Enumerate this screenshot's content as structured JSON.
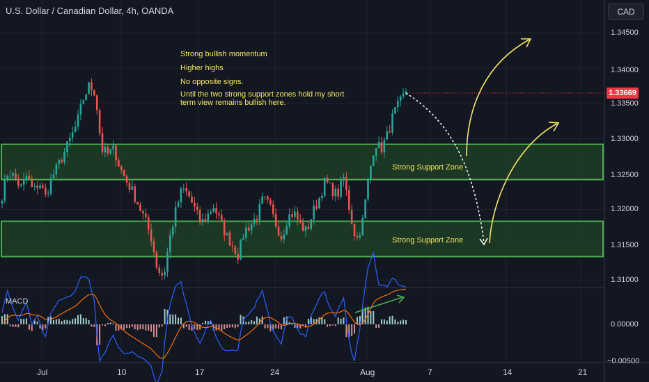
{
  "header": {
    "symbol_title": "U.S. Dollar / Canadian Dollar, 4h, OANDA"
  },
  "currency_button": "CAD",
  "last_price": "1.33669",
  "notes": [
    "Strong bullish momentum",
    "Higher highs",
    "No opposite signs.",
    "Until the two strong support zones hold my short\nterm view remains bullish here."
  ],
  "zones": [
    {
      "label": "Strong Support Zone",
      "low": 1.3242,
      "high": 1.3292
    },
    {
      "label": "Strong Support Zone",
      "low": 1.3133,
      "high": 1.3183
    }
  ],
  "macd": {
    "title": "MACD",
    "ticks": [
      "0.00000",
      "−0.00500"
    ]
  },
  "colors": {
    "background": "#131722",
    "bull": "#26a69a",
    "bear": "#ef5350",
    "zone_fill": "#1f3d23",
    "zone_border": "#4caf50",
    "annotation": "#f5e663",
    "price_tag": "#f23645"
  },
  "chart_data": {
    "type": "candlestick",
    "title": "U.S. Dollar / Canadian Dollar, 4h, OANDA",
    "y_axis": {
      "ticks": [
        "1.34500",
        "1.34000",
        "1.33500",
        "1.33000",
        "1.32500",
        "1.32000",
        "1.31500",
        "1.31000"
      ],
      "range": [
        1.309,
        1.3475
      ]
    },
    "x_axis": {
      "ticks": [
        "Jul",
        "10",
        "17",
        "24",
        "Aug",
        "7",
        "14",
        "21"
      ]
    },
    "close_path": [
      1.322,
      1.3255,
      1.3245,
      1.323,
      1.3248,
      1.3225,
      1.3238,
      1.3218,
      1.3245,
      1.3262,
      1.328,
      1.33,
      1.332,
      1.3355,
      1.3375,
      1.3365,
      1.3285,
      1.3278,
      1.3285,
      1.3258,
      1.324,
      1.3225,
      1.3205,
      1.3185,
      1.316,
      1.3115,
      1.3105,
      1.316,
      1.32,
      1.323,
      1.322,
      1.32,
      1.318,
      1.319,
      1.3205,
      1.3185,
      1.3165,
      1.315,
      1.3135,
      1.317,
      1.3178,
      1.319,
      1.3215,
      1.3205,
      1.318,
      1.316,
      1.319,
      1.3195,
      1.3178,
      1.3168,
      1.3195,
      1.3215,
      1.324,
      1.3228,
      1.322,
      1.3245,
      1.3195,
      1.3155,
      1.3182,
      1.3245,
      1.3295,
      1.3285,
      1.3305,
      1.3335,
      1.335,
      1.3367
    ],
    "macd_histogram_range": [
      -0.0055,
      0.0044
    ]
  }
}
